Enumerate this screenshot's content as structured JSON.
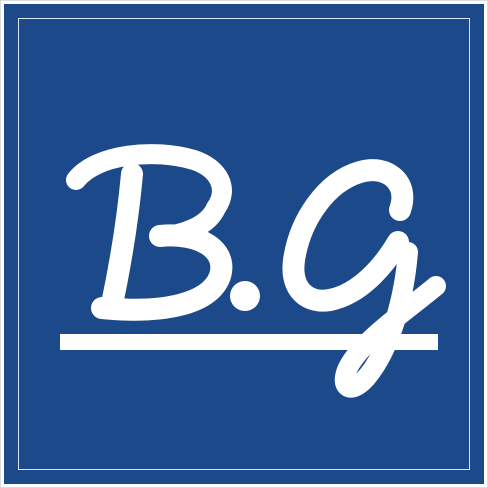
{
  "logo": {
    "monogram": "B.G",
    "background_color": "#1c4989",
    "foreground_color": "#ffffff"
  }
}
